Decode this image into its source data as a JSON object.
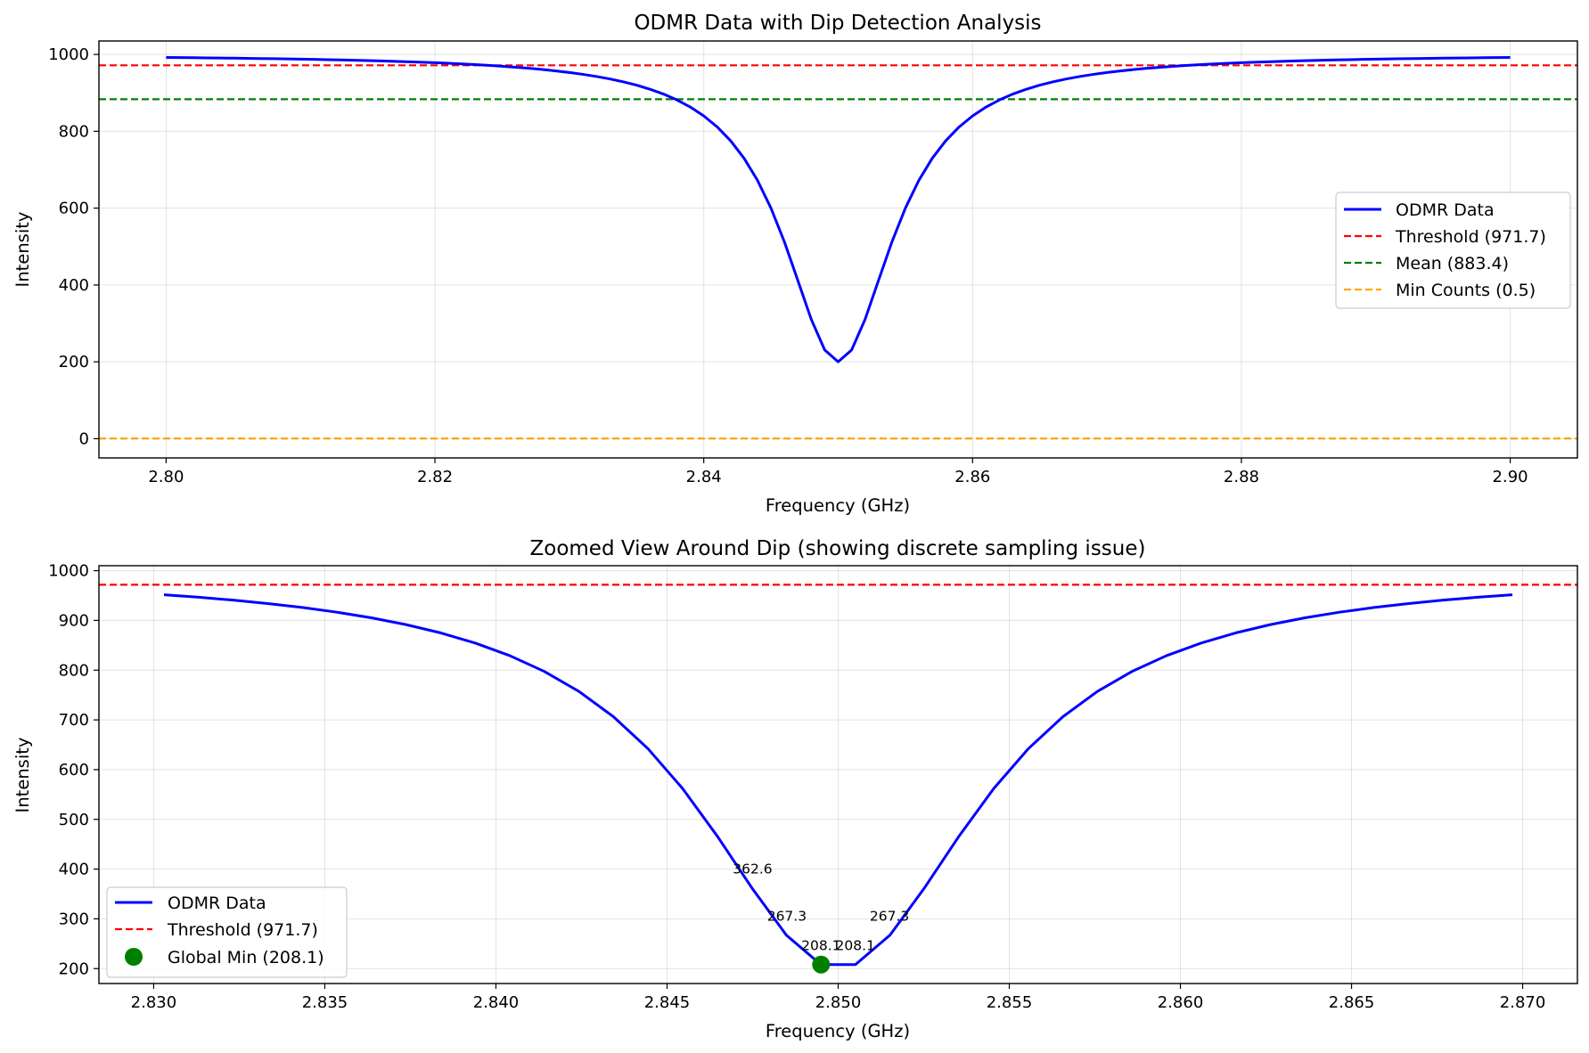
{
  "charts": [
    {
      "id": "top",
      "title": "ODMR Data with Dip Detection Analysis",
      "xlabel": "Frequency (GHz)",
      "ylabel": "Intensity",
      "xlim": [
        2.795,
        2.905
      ],
      "ylim": [
        -50,
        1035
      ],
      "xticks": [
        2.8,
        2.82,
        2.84,
        2.86,
        2.88,
        2.9
      ],
      "xtick_labels": [
        "2.80",
        "2.82",
        "2.84",
        "2.86",
        "2.88",
        "2.90"
      ],
      "yticks": [
        0,
        200,
        400,
        600,
        800,
        1000
      ],
      "ytick_labels": [
        "0",
        "200",
        "400",
        "600",
        "800",
        "1000"
      ],
      "grid": true,
      "legend_position": "center-right",
      "series": [
        {
          "name": "ODMR Data",
          "kind": "line",
          "color": "#0000ff",
          "curve": {
            "baseline": 1000,
            "depth": 800,
            "center": 2.85,
            "gamma": 0.005,
            "x_start": 2.8,
            "x_end": 2.9,
            "step": 0.001
          }
        },
        {
          "name": "Threshold (971.7)",
          "kind": "hline",
          "y": 971.7,
          "color": "#ff0000"
        },
        {
          "name": "Mean (883.4)",
          "kind": "hline",
          "y": 883.4,
          "color": "#008000"
        },
        {
          "name": "Min Counts (0.5)",
          "kind": "hline",
          "y": 0.5,
          "color": "#ffa500"
        }
      ]
    },
    {
      "id": "bottom",
      "title": "Zoomed View Around Dip (showing discrete sampling issue)",
      "xlabel": "Frequency (GHz)",
      "ylabel": "Intensity",
      "xlim": [
        2.8284,
        2.8716
      ],
      "ylim": [
        170,
        1010
      ],
      "xticks": [
        2.83,
        2.835,
        2.84,
        2.845,
        2.85,
        2.855,
        2.86,
        2.865,
        2.87
      ],
      "xtick_labels": [
        "2.830",
        "2.835",
        "2.840",
        "2.845",
        "2.850",
        "2.855",
        "2.860",
        "2.865",
        "2.870"
      ],
      "yticks": [
        200,
        300,
        400,
        500,
        600,
        700,
        800,
        900,
        1000
      ],
      "ytick_labels": [
        "200",
        "300",
        "400",
        "500",
        "600",
        "700",
        "800",
        "900",
        "1000"
      ],
      "grid": true,
      "legend_position": "lower-left",
      "series": [
        {
          "name": "ODMR Data",
          "kind": "line",
          "color": "#0000ff",
          "curve": {
            "baseline": 1000,
            "depth": 800,
            "center": 2.85,
            "gamma": 0.005,
            "x_start": 2.8303,
            "x_end": 2.8697,
            "step": 0.00101
          }
        },
        {
          "name": "Threshold (971.7)",
          "kind": "hline",
          "y": 971.7,
          "color": "#ff0000"
        },
        {
          "name": "Global Min (208.1)",
          "kind": "point",
          "x": 2.8495,
          "y": 208.1,
          "color": "#008000"
        }
      ],
      "point_labels": [
        {
          "x": 2.8475,
          "y": 362.6,
          "text": "362.6"
        },
        {
          "x": 2.8485,
          "y": 267.3,
          "text": "267.3"
        },
        {
          "x": 2.8495,
          "y": 208.1,
          "text": "208.1"
        },
        {
          "x": 2.8505,
          "y": 208.1,
          "text": "208.1"
        },
        {
          "x": 2.8515,
          "y": 267.3,
          "text": "267.3"
        }
      ]
    }
  ]
}
